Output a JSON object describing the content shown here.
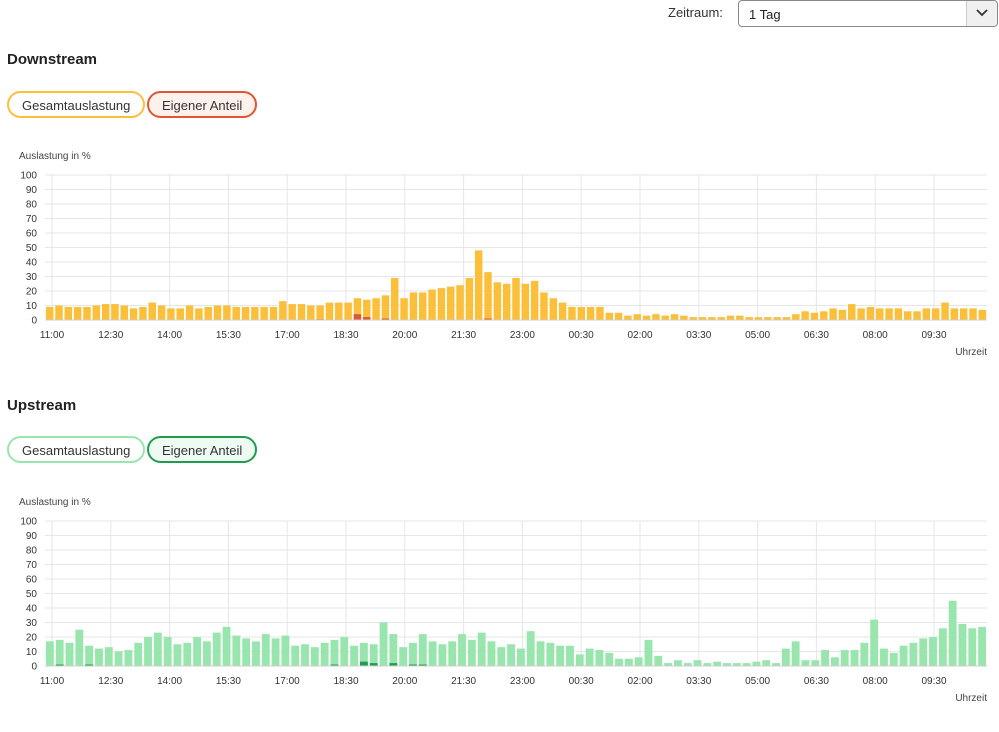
{
  "filter": {
    "label": "Zeitraum:",
    "selected": "1 Tag"
  },
  "colors": {
    "downstream_total": "#fbbf3a",
    "downstream_own": "#e05533",
    "upstream_total": "#98e6ae",
    "upstream_own": "#1f9d4c"
  },
  "downstream": {
    "title": "Downstream",
    "toggle_total": "Gesamtauslastung",
    "toggle_own": "Eigener Anteil"
  },
  "upstream": {
    "title": "Upstream",
    "toggle_total": "Gesamtauslastung",
    "toggle_own": "Eigener Anteil"
  },
  "chart_data": [
    {
      "type": "bar",
      "ylabel": "Auslastung in %",
      "xlabel": "Uhrzeit",
      "ylim": [
        0,
        100
      ],
      "y_ticks": [
        "0",
        "10",
        "20",
        "30",
        "40",
        "50",
        "60",
        "70",
        "80",
        "90",
        "100"
      ],
      "x_ticks": [
        "11:00",
        "12:30",
        "14:00",
        "15:30",
        "17:00",
        "18:30",
        "20:00",
        "21:30",
        "23:00",
        "00:30",
        "02:00",
        "03:30",
        "05:00",
        "06:30",
        "08:00",
        "09:30"
      ],
      "series": [
        {
          "name": "Gesamtauslastung",
          "values": [
            9,
            10,
            9,
            9,
            9,
            10,
            11,
            11,
            10,
            8,
            9,
            12,
            10,
            8,
            8,
            10,
            8,
            9,
            10,
            10,
            9,
            9,
            9,
            9,
            9,
            13,
            11,
            11,
            10,
            10,
            12,
            12,
            12,
            15,
            14,
            15,
            17,
            29,
            15,
            19,
            19,
            21,
            22,
            23,
            24,
            29,
            48,
            33,
            26,
            25,
            29,
            25,
            27,
            19,
            15,
            12,
            9,
            9,
            9,
            9,
            5,
            5,
            3,
            4,
            3,
            4,
            3,
            4,
            3,
            2,
            2,
            2,
            2,
            3,
            3,
            2,
            2,
            2,
            2,
            2,
            4,
            6,
            5,
            6,
            8,
            7,
            11,
            8,
            9,
            8,
            8,
            8,
            6,
            6,
            8,
            8,
            12,
            8,
            8,
            8,
            7
          ]
        },
        {
          "name": "Eigener Anteil",
          "values": [
            0,
            0,
            0,
            0,
            0,
            0,
            0,
            0,
            0,
            0,
            0,
            0,
            0,
            0,
            0,
            0,
            0,
            0,
            0,
            0,
            0,
            0,
            0,
            0,
            0,
            0,
            0,
            0,
            0,
            0.5,
            0,
            0,
            0,
            4,
            2,
            0,
            1,
            0,
            0,
            0,
            0,
            0,
            0,
            0,
            0,
            0,
            0,
            1,
            0,
            0,
            0,
            0,
            0,
            0,
            0,
            0,
            0,
            0,
            0,
            0,
            0,
            0,
            0,
            0,
            0,
            0,
            0,
            0,
            0,
            0,
            0,
            0,
            0,
            0,
            0,
            0,
            0,
            0,
            0,
            0,
            0,
            0,
            0,
            0,
            0,
            0,
            0,
            0,
            0,
            0,
            0,
            0,
            0,
            0,
            0,
            0,
            0,
            0,
            0,
            0,
            0
          ]
        }
      ]
    },
    {
      "type": "bar",
      "ylabel": "Auslastung in %",
      "xlabel": "Uhrzeit",
      "ylim": [
        0,
        100
      ],
      "y_ticks": [
        "0",
        "10",
        "20",
        "30",
        "40",
        "50",
        "60",
        "70",
        "80",
        "90",
        "100"
      ],
      "x_ticks": [
        "11:00",
        "12:30",
        "14:00",
        "15:30",
        "17:00",
        "18:30",
        "20:00",
        "21:30",
        "23:00",
        "00:30",
        "02:00",
        "03:30",
        "05:00",
        "06:30",
        "08:00",
        "09:30"
      ],
      "series": [
        {
          "name": "Gesamtauslastung",
          "values": [
            17,
            18,
            16,
            25,
            14,
            12,
            13,
            10,
            11,
            16,
            20,
            23,
            20,
            15,
            16,
            20,
            17,
            23,
            27,
            21,
            19,
            17,
            22,
            19,
            21,
            14,
            15,
            13,
            16,
            18,
            20,
            14,
            16,
            15,
            30,
            22,
            13,
            16,
            22,
            17,
            15,
            17,
            22,
            18,
            23,
            17,
            13,
            15,
            12,
            24,
            17,
            16,
            14,
            14,
            8,
            12,
            11,
            9,
            5,
            5,
            6,
            18,
            7,
            2,
            4,
            2,
            4,
            2,
            3,
            2,
            2,
            2,
            3,
            4,
            2,
            12,
            17,
            4,
            4,
            11,
            6,
            11,
            11,
            16,
            32,
            12,
            9,
            14,
            16,
            19,
            20,
            26,
            45,
            29,
            26,
            27
          ]
        },
        {
          "name": "Eigener Anteil",
          "values": [
            0,
            1,
            0,
            0,
            1,
            0,
            0,
            0,
            0,
            0,
            0,
            0,
            0,
            0,
            0,
            0,
            0,
            0,
            0,
            0,
            0,
            0,
            0,
            0,
            0,
            0,
            0,
            0,
            0,
            1,
            0,
            0,
            3,
            2,
            0,
            2,
            0,
            1,
            1,
            0,
            0,
            0,
            0,
            0,
            0,
            0,
            0,
            0,
            0,
            0,
            0,
            0,
            0,
            0,
            0,
            0,
            0,
            0,
            0,
            0,
            0,
            0,
            0,
            0,
            0,
            0,
            0,
            0,
            0,
            0,
            0,
            0,
            0,
            0,
            0,
            0,
            0,
            0,
            0,
            0,
            0,
            0,
            0,
            0,
            0,
            0,
            0,
            0,
            0,
            0,
            0,
            0,
            0,
            0,
            0,
            0
          ]
        }
      ]
    }
  ]
}
